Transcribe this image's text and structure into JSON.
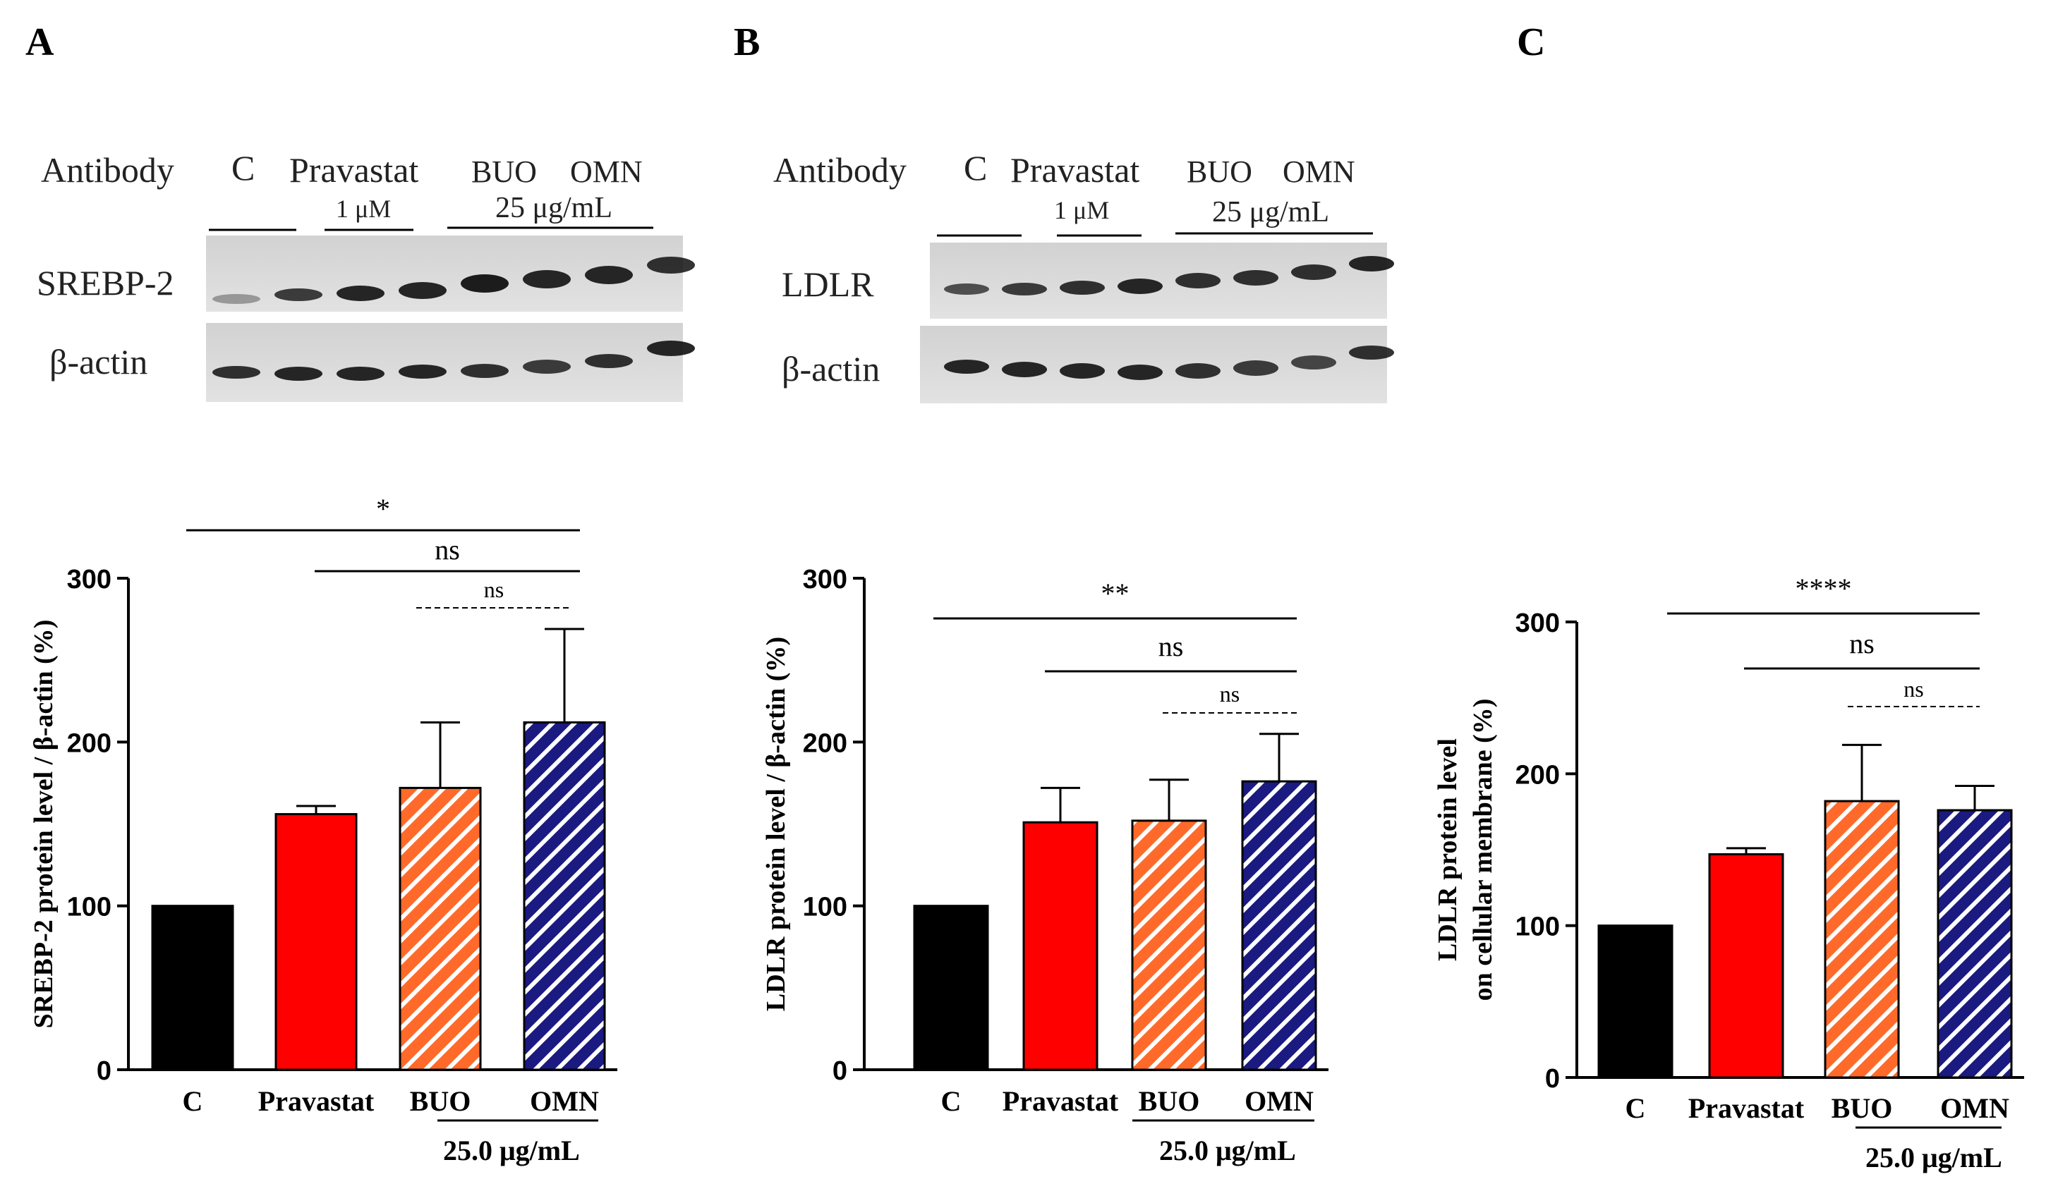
{
  "panels": [
    {
      "letter": "A",
      "blot": {
        "header": "Antibody",
        "lanes": [
          "C",
          "Pravastat",
          "BUO",
          "OMN"
        ],
        "pravastat_conc": "1 μM",
        "extract_conc": "25 μg/mL",
        "rows": [
          "SREBP-2",
          "β-actin"
        ]
      }
    },
    {
      "letter": "B",
      "blot": {
        "header": "Antibody",
        "lanes": [
          "C",
          "Pravastat",
          "BUO",
          "OMN"
        ],
        "pravastat_conc": "1 μM",
        "extract_conc": "25 μg/mL",
        "rows": [
          "LDLR",
          "β-actin"
        ]
      }
    },
    {
      "letter": "C"
    }
  ],
  "colors": {
    "C": "#000000",
    "Pravastat": "#ff0000",
    "BUO": "#ff6a2a",
    "OMN": "#1a1a80",
    "hatch": "#ffffff"
  },
  "chart_data": [
    {
      "type": "bar",
      "categories": [
        "C",
        "Pravastat",
        "BUO",
        "OMN"
      ],
      "values": [
        100,
        156,
        172,
        212
      ],
      "errors": [
        0,
        5,
        40,
        57
      ],
      "ylabel": "SREBP-2 protein level / β-actin (%)",
      "ylabel_line2": "",
      "ylim": [
        0,
        300
      ],
      "yticks": [
        0,
        100,
        200,
        300
      ],
      "group_label": "25.0 μg/mL",
      "significance": [
        {
          "from": 0,
          "to": 3,
          "label": "*",
          "style": "solid"
        },
        {
          "from": 1,
          "to": 3,
          "label": "ns",
          "style": "solid"
        },
        {
          "from": 2,
          "to": 3,
          "label": "ns",
          "style": "dashed"
        }
      ]
    },
    {
      "type": "bar",
      "categories": [
        "C",
        "Pravastat",
        "BUO",
        "OMN"
      ],
      "values": [
        100,
        151,
        152,
        176
      ],
      "errors": [
        0,
        21,
        25,
        29
      ],
      "ylabel": "LDLR protein level / β-actin (%)",
      "ylabel_line2": "",
      "ylim": [
        0,
        300
      ],
      "yticks": [
        0,
        100,
        200,
        300
      ],
      "group_label": "25.0 μg/mL",
      "significance": [
        {
          "from": 0,
          "to": 3,
          "label": "**",
          "style": "solid"
        },
        {
          "from": 1,
          "to": 3,
          "label": "ns",
          "style": "solid"
        },
        {
          "from": 2,
          "to": 3,
          "label": "ns",
          "style": "dashed"
        }
      ]
    },
    {
      "type": "bar",
      "categories": [
        "C",
        "Pravastat",
        "BUO",
        "OMN"
      ],
      "values": [
        100,
        147,
        182,
        176
      ],
      "errors": [
        0,
        4,
        37,
        16
      ],
      "ylabel": "LDLR protein level",
      "ylabel_line2": "on cellular membrane  (%)",
      "ylim": [
        0,
        300
      ],
      "yticks": [
        0,
        100,
        200,
        300
      ],
      "group_label": "25.0 μg/mL",
      "significance": [
        {
          "from": 0,
          "to": 3,
          "label": "****",
          "style": "solid"
        },
        {
          "from": 1,
          "to": 3,
          "label": "ns",
          "style": "solid"
        },
        {
          "from": 2,
          "to": 3,
          "label": "ns",
          "style": "dashed"
        }
      ]
    }
  ]
}
